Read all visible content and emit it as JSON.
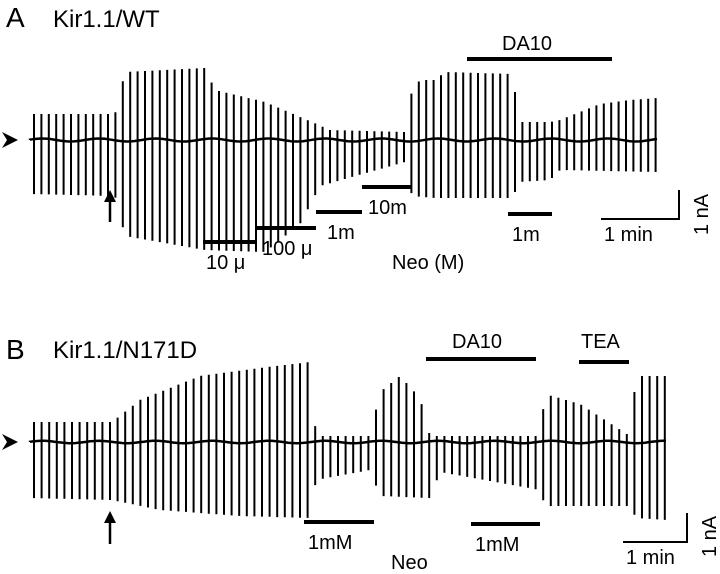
{
  "panel_a": {
    "letter": "A",
    "title": "Kir1.1/WT",
    "bars": [
      "DA10",
      "10m",
      "1m",
      "100 μ",
      "10 μ",
      "1m"
    ],
    "neo_label": "Neo (M)",
    "scale_time": "1 min",
    "scale_current": "1 nA"
  },
  "panel_b": {
    "letter": "B",
    "title": "Kir1.1/N171D",
    "bars": [
      "DA10",
      "TEA",
      "1mM",
      "1mM"
    ],
    "neo_label": "Neo",
    "scale_time": "1 min",
    "scale_current": "1 nA"
  }
}
